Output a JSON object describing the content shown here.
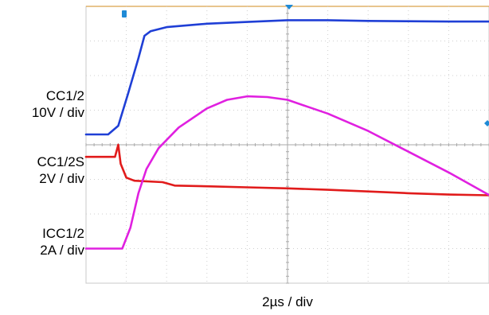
{
  "chart_data": {
    "type": "line",
    "grid": true,
    "x_divisions": 10,
    "y_divisions": 8,
    "xlabel": "2µs / div",
    "x_range_divs": [
      0,
      10
    ],
    "y_range_divs": [
      0,
      8
    ],
    "channels": [
      {
        "id": "vcc",
        "label_lines": [
          "CC1/2",
          "10V / div"
        ],
        "color": "#1f3fd6",
        "points_div": [
          [
            0,
            4.3
          ],
          [
            0.55,
            4.3
          ],
          [
            0.8,
            4.55
          ],
          [
            1.05,
            5.5
          ],
          [
            1.3,
            6.5
          ],
          [
            1.45,
            7.15
          ],
          [
            1.6,
            7.28
          ],
          [
            2.0,
            7.4
          ],
          [
            3,
            7.5
          ],
          [
            4,
            7.55
          ],
          [
            5,
            7.6
          ],
          [
            6,
            7.6
          ],
          [
            7,
            7.58
          ],
          [
            8,
            7.57
          ],
          [
            9,
            7.56
          ],
          [
            10,
            7.56
          ]
        ]
      },
      {
        "id": "vccs",
        "label_lines": [
          "CC1/2S",
          "2V / div"
        ],
        "color": "#e11b1b",
        "points_div": [
          [
            0,
            3.65
          ],
          [
            0.72,
            3.65
          ],
          [
            0.8,
            4.0
          ],
          [
            0.86,
            3.45
          ],
          [
            1.0,
            3.05
          ],
          [
            1.2,
            2.96
          ],
          [
            1.9,
            2.92
          ],
          [
            2.2,
            2.82
          ],
          [
            3,
            2.8
          ],
          [
            4,
            2.77
          ],
          [
            5,
            2.74
          ],
          [
            6,
            2.7
          ],
          [
            7,
            2.65
          ],
          [
            8,
            2.6
          ],
          [
            9,
            2.56
          ],
          [
            10,
            2.54
          ]
        ]
      },
      {
        "id": "icc",
        "label_lines": [
          "ICC1/2",
          "2A / div"
        ],
        "color": "#e020e0",
        "points_div": [
          [
            0,
            1.0
          ],
          [
            0.9,
            1.0
          ],
          [
            1.1,
            1.6
          ],
          [
            1.3,
            2.6
          ],
          [
            1.5,
            3.3
          ],
          [
            1.8,
            3.9
          ],
          [
            2.3,
            4.5
          ],
          [
            3,
            5.05
          ],
          [
            3.5,
            5.3
          ],
          [
            4,
            5.4
          ],
          [
            4.5,
            5.38
          ],
          [
            5,
            5.3
          ],
          [
            5.5,
            5.1
          ],
          [
            6,
            4.9
          ],
          [
            7,
            4.4
          ],
          [
            8,
            3.8
          ],
          [
            9,
            3.2
          ],
          [
            10,
            2.55
          ]
        ]
      }
    ],
    "markers": {
      "trigger_color": "#1f8ad6",
      "ground_color": "#1f8ad6"
    }
  }
}
